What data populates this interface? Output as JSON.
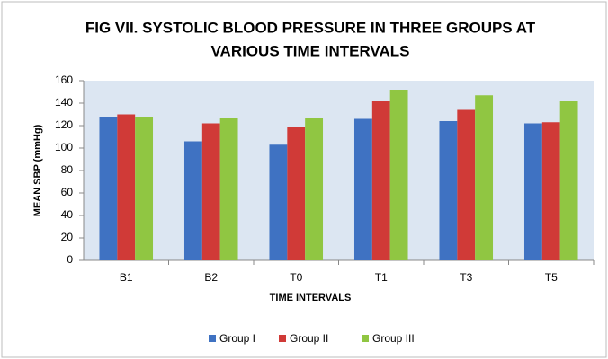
{
  "chart_data": {
    "type": "bar",
    "title": [
      "FIG VII. SYSTOLIC BLOOD PRESSURE IN THREE GROUPS AT",
      "VARIOUS TIME INTERVALS"
    ],
    "x_label": "TIME INTERVALS",
    "y_label": "MEAN SBP (mmHg)",
    "categories": [
      "B1",
      "B2",
      "T0",
      "T1",
      "T3",
      "T5"
    ],
    "series": [
      {
        "name": "Group I",
        "color": "#3f72c2",
        "values": [
          128,
          106,
          103,
          126,
          124,
          122
        ]
      },
      {
        "name": "Group II",
        "color": "#d03a37",
        "values": [
          130,
          122,
          119,
          142,
          134,
          123
        ]
      },
      {
        "name": "Group III",
        "color": "#90c642",
        "values": [
          128,
          127,
          127,
          152,
          147,
          142
        ]
      }
    ],
    "ylim": [
      0,
      160
    ],
    "yticks": [
      0,
      20,
      40,
      60,
      80,
      100,
      120,
      140,
      160
    ],
    "legend": "bottom"
  }
}
